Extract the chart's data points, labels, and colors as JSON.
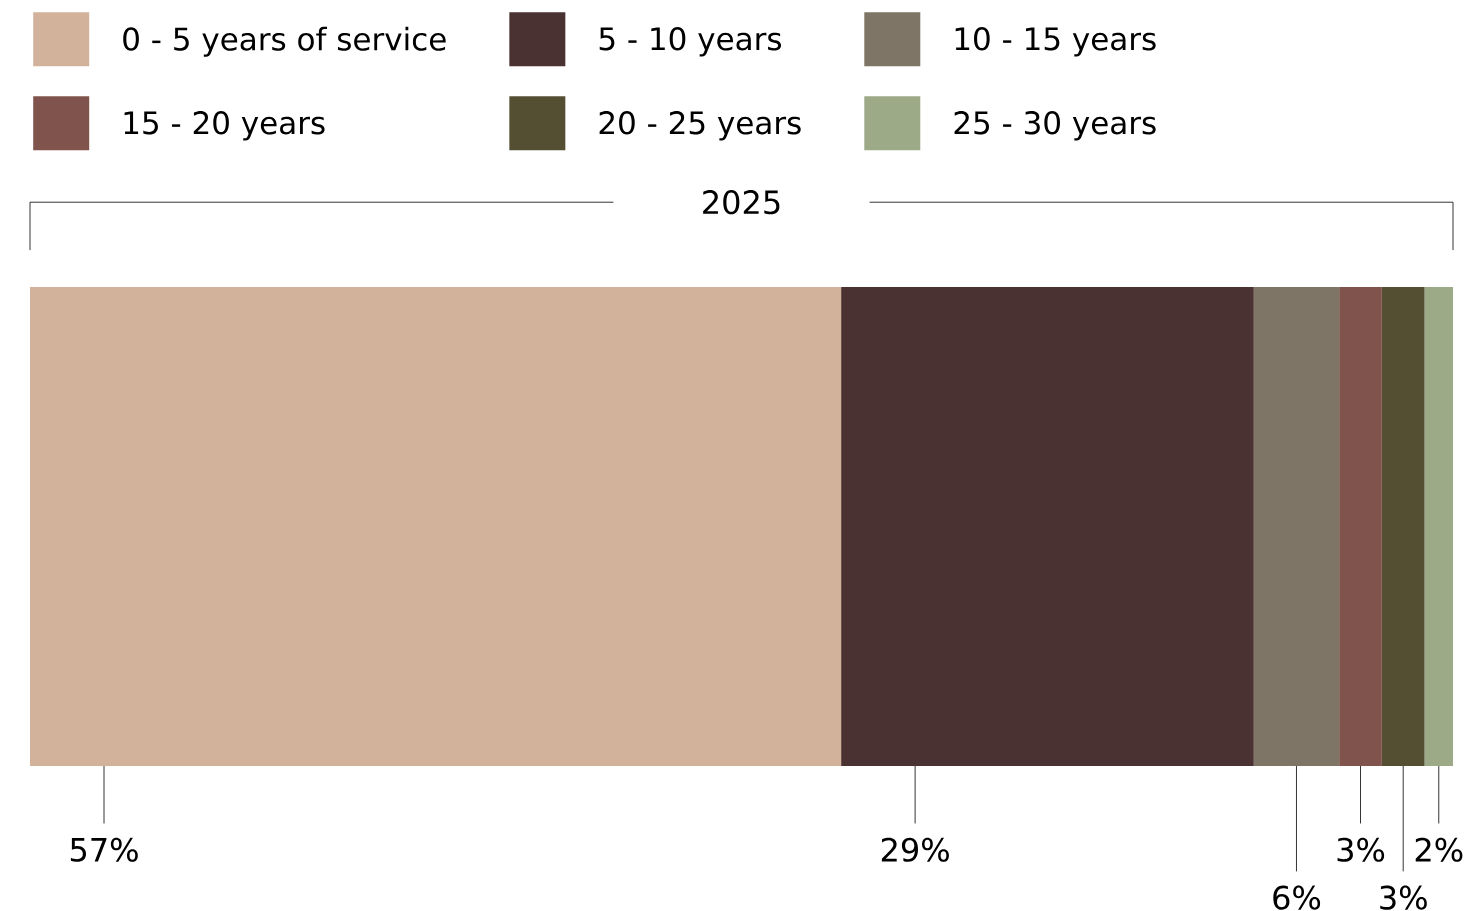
{
  "chart_data": {
    "type": "bar",
    "orientation": "horizontal",
    "stacked": true,
    "legend": "top",
    "title": "2025",
    "categories": [
      null
    ],
    "series": [
      {
        "name": "0 - 5 years of service",
        "color": "#d2b29b",
        "values": [
          57
        ],
        "value_labels": [
          "57%"
        ]
      },
      {
        "name": "5 - 10 years",
        "color": "#4a3132",
        "values": [
          29
        ],
        "value_labels": [
          "29%"
        ]
      },
      {
        "name": "10 - 15 years",
        "color": "#7f7566",
        "values": [
          6
        ],
        "value_labels": [
          "6%"
        ]
      },
      {
        "name": "15 - 20 years",
        "color": "#80544c",
        "values": [
          3
        ],
        "value_labels": [
          "3%"
        ]
      },
      {
        "name": "20 - 25 years",
        "color": "#544f33",
        "values": [
          3
        ],
        "value_labels": [
          "3%"
        ]
      },
      {
        "name": "25 - 30 years",
        "color": "#9caa88",
        "values": [
          2
        ],
        "value_labels": [
          "2%"
        ]
      }
    ]
  }
}
